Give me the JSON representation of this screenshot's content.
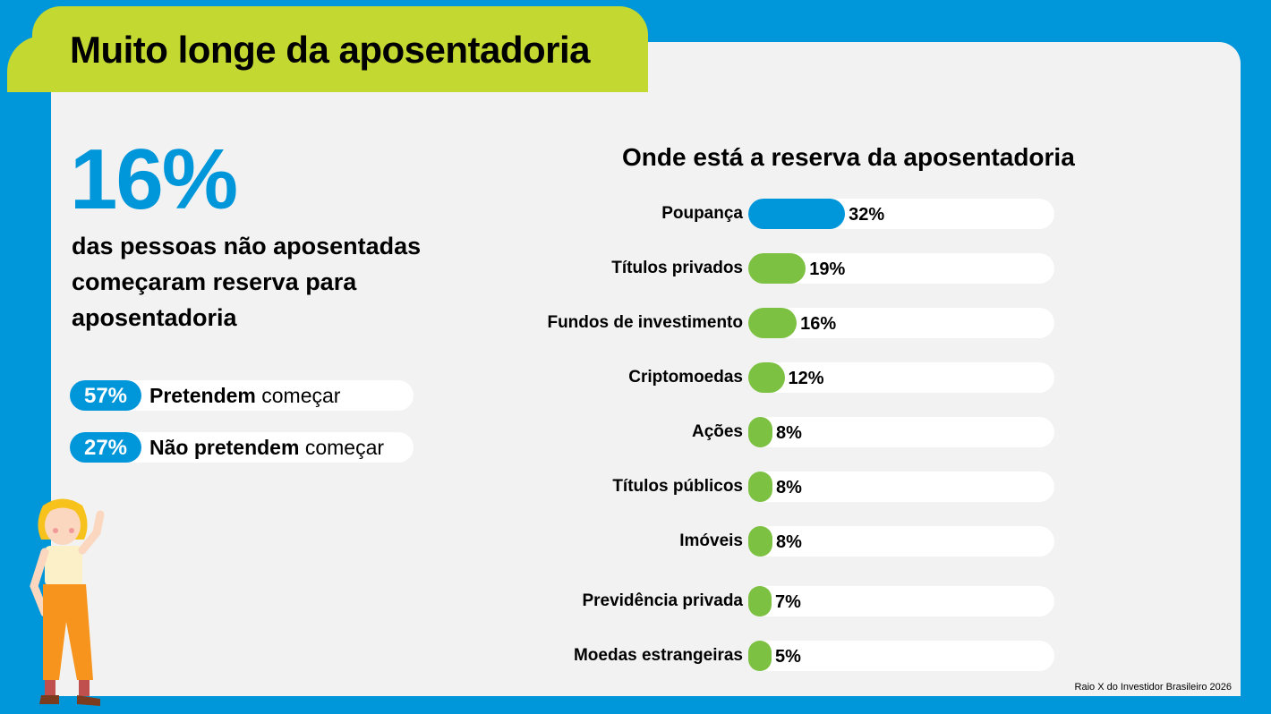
{
  "header": {
    "title": "Muito longe da aposentadoria"
  },
  "highlight": {
    "value": "16%",
    "description": "das pessoas não aposentadas começaram reserva para aposentadoria"
  },
  "intentions": [
    {
      "value": "57%",
      "bold": "Pretendem",
      "rest": " começar"
    },
    {
      "value": "27%",
      "bold": "Não pretendem",
      "rest": " começar"
    }
  ],
  "chart_data": {
    "type": "bar",
    "orientation": "horizontal",
    "title": "Onde está a reserva da aposentadoria",
    "categories": [
      "Poupança",
      "Títulos privados",
      "Fundos de investimento",
      "Criptomoedas",
      "Ações",
      "Títulos públicos",
      "Imóveis",
      "Previdência privada",
      "Moedas estrangeiras"
    ],
    "values": [
      32,
      19,
      16,
      12,
      8,
      8,
      8,
      7,
      5
    ],
    "labels": [
      "32%",
      "19%",
      "16%",
      "12%",
      "8%",
      "8%",
      "8%",
      "7%",
      "5%"
    ],
    "xlim": [
      0,
      100
    ],
    "colors": {
      "highlight": "#0096da",
      "default": "#7dc142",
      "track": "#ffffff"
    }
  },
  "source": "Raio X do Investidor Brasileiro 2026",
  "colors": {
    "background": "#0096da",
    "panel": "#f2f2f2",
    "tab": "#c3d830"
  }
}
